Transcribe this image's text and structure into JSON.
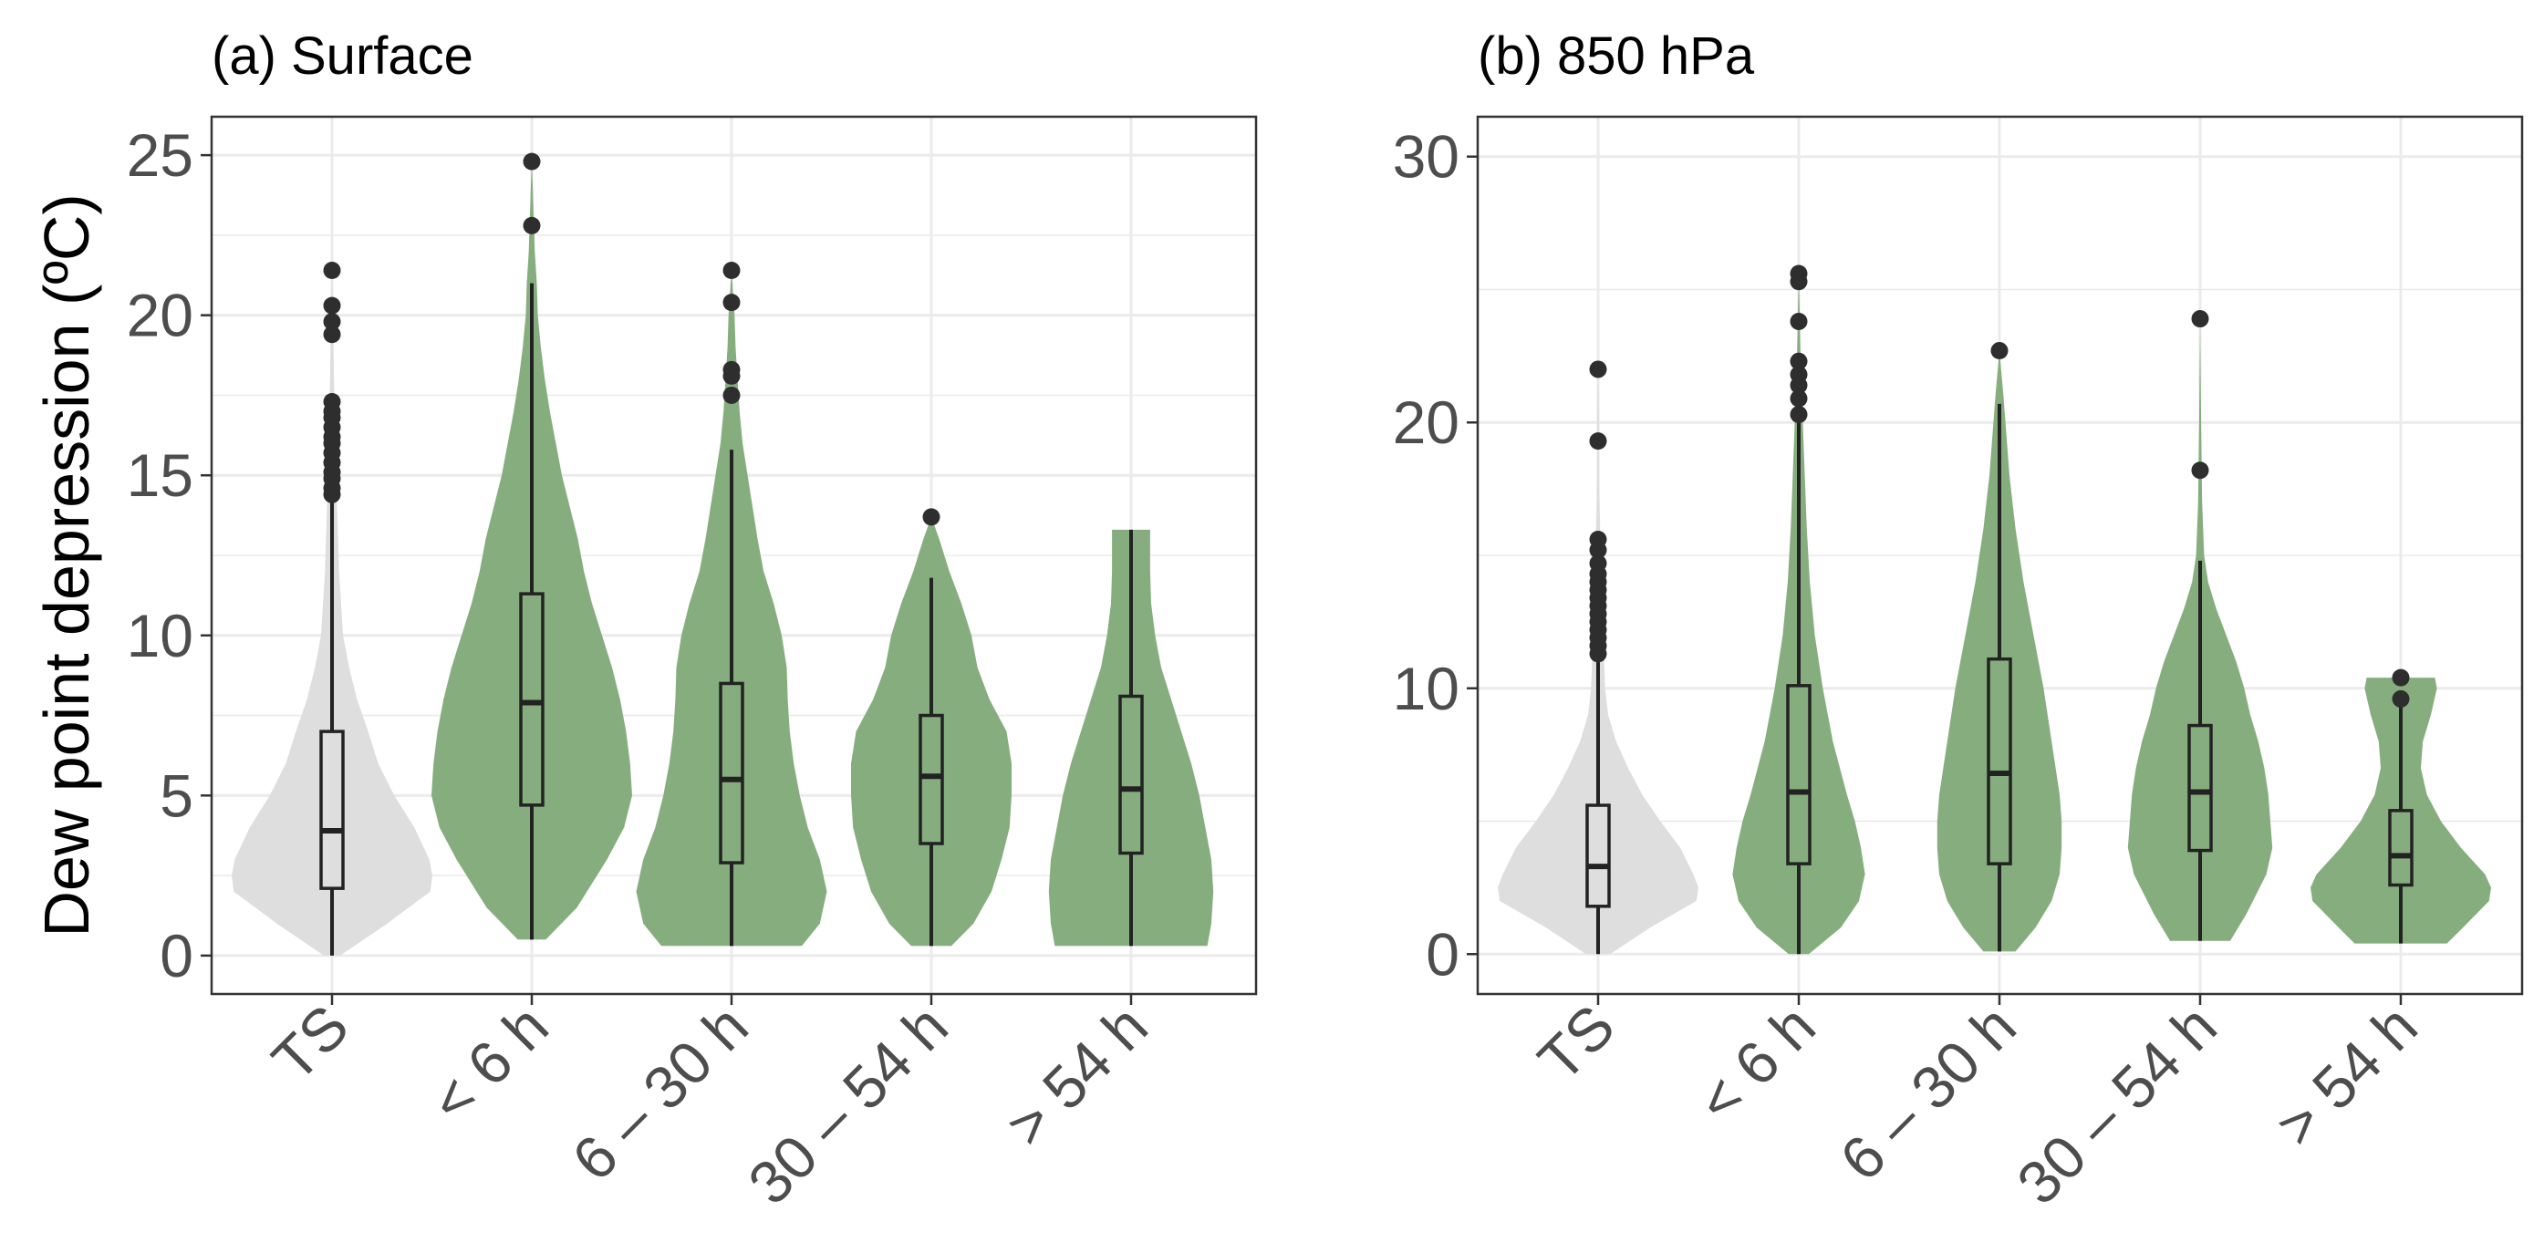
{
  "chart_data": [
    {
      "type": "violin",
      "title": "(a) Surface",
      "ylabel": "Dew point depression (ºC)",
      "xlabel": "",
      "categories": [
        "TS",
        "< 6 h",
        "6 – 30 h",
        "30 – 54 h",
        "> 54 h"
      ],
      "ylim": [
        -1.2,
        26.2
      ],
      "yticks": [
        0,
        5,
        10,
        15,
        20,
        25
      ],
      "grid": true,
      "fill_colors": [
        "#dedede",
        "#86ad7e",
        "#86ad7e",
        "#86ad7e",
        "#86ad7e"
      ],
      "series": [
        {
          "name": "TS",
          "box": {
            "q1": 2.1,
            "median": 3.9,
            "q3": 7.0,
            "whisker_low": 0.0,
            "whisker_high": 14.2
          },
          "outliers": [
            21.4,
            20.3,
            19.8,
            19.4,
            17.3,
            17.0,
            16.8,
            16.5,
            16.2,
            16.0,
            15.7,
            15.4,
            15.1,
            14.9,
            14.6,
            14.4
          ],
          "violin": [
            [
              0.0,
              0.08
            ],
            [
              1.0,
              0.55
            ],
            [
              2.0,
              0.98
            ],
            [
              2.5,
              1.0
            ],
            [
              3.0,
              0.97
            ],
            [
              4.0,
              0.82
            ],
            [
              5.0,
              0.62
            ],
            [
              6.0,
              0.46
            ],
            [
              7.0,
              0.36
            ],
            [
              8.0,
              0.25
            ],
            [
              9.0,
              0.17
            ],
            [
              10.0,
              0.11
            ],
            [
              12.0,
              0.07
            ],
            [
              14.0,
              0.05
            ],
            [
              16.0,
              0.03
            ],
            [
              18.0,
              0.02
            ],
            [
              20.0,
              0.01
            ],
            [
              21.4,
              0.0
            ]
          ]
        },
        {
          "name": "< 6 h",
          "box": {
            "q1": 4.7,
            "median": 7.9,
            "q3": 11.3,
            "whisker_low": 0.5,
            "whisker_high": 21.0
          },
          "outliers": [
            24.8,
            22.8
          ],
          "violin": [
            [
              0.5,
              0.14
            ],
            [
              1.5,
              0.45
            ],
            [
              3.0,
              0.75
            ],
            [
              4.0,
              0.92
            ],
            [
              5.0,
              1.0
            ],
            [
              6.0,
              0.98
            ],
            [
              7.0,
              0.94
            ],
            [
              8.0,
              0.88
            ],
            [
              9.0,
              0.8
            ],
            [
              10.0,
              0.7
            ],
            [
              11.0,
              0.6
            ],
            [
              12.0,
              0.52
            ],
            [
              13.0,
              0.46
            ],
            [
              14.0,
              0.38
            ],
            [
              15.0,
              0.3
            ],
            [
              16.0,
              0.24
            ],
            [
              17.0,
              0.18
            ],
            [
              18.0,
              0.13
            ],
            [
              19.0,
              0.09
            ],
            [
              20.0,
              0.06
            ],
            [
              21.0,
              0.05
            ],
            [
              22.0,
              0.03
            ],
            [
              23.0,
              0.02
            ],
            [
              24.0,
              0.01
            ],
            [
              24.8,
              0.0
            ]
          ]
        },
        {
          "name": "6 – 30 h",
          "box": {
            "q1": 2.9,
            "median": 5.5,
            "q3": 8.5,
            "whisker_low": 0.3,
            "whisker_high": 15.8
          },
          "outliers": [
            21.4,
            20.4,
            18.3,
            18.1,
            17.5
          ],
          "violin": [
            [
              0.3,
              0.7
            ],
            [
              1.0,
              0.88
            ],
            [
              2.0,
              0.95
            ],
            [
              3.0,
              0.88
            ],
            [
              4.0,
              0.76
            ],
            [
              5.0,
              0.68
            ],
            [
              6.0,
              0.62
            ],
            [
              7.0,
              0.58
            ],
            [
              8.0,
              0.56
            ],
            [
              9.0,
              0.55
            ],
            [
              10.0,
              0.5
            ],
            [
              11.0,
              0.42
            ],
            [
              12.0,
              0.32
            ],
            [
              13.0,
              0.26
            ],
            [
              14.0,
              0.21
            ],
            [
              15.0,
              0.16
            ],
            [
              16.0,
              0.11
            ],
            [
              17.0,
              0.08
            ],
            [
              18.0,
              0.06
            ],
            [
              19.0,
              0.04
            ],
            [
              20.0,
              0.03
            ],
            [
              21.4,
              0.0
            ]
          ]
        },
        {
          "name": "30 – 54 h",
          "box": {
            "q1": 3.5,
            "median": 5.6,
            "q3": 7.5,
            "whisker_low": 0.3,
            "whisker_high": 11.8
          },
          "outliers": [
            13.7
          ],
          "violin": [
            [
              0.3,
              0.2
            ],
            [
              1.0,
              0.42
            ],
            [
              2.0,
              0.6
            ],
            [
              3.0,
              0.7
            ],
            [
              4.0,
              0.78
            ],
            [
              5.0,
              0.8
            ],
            [
              6.0,
              0.8
            ],
            [
              7.0,
              0.75
            ],
            [
              8.0,
              0.58
            ],
            [
              9.0,
              0.46
            ],
            [
              10.0,
              0.4
            ],
            [
              11.0,
              0.3
            ],
            [
              12.0,
              0.18
            ],
            [
              13.0,
              0.08
            ],
            [
              13.7,
              0.0
            ]
          ]
        },
        {
          "name": "> 54 h",
          "box": {
            "q1": 3.2,
            "median": 5.2,
            "q3": 8.1,
            "whisker_low": 0.3,
            "whisker_high": 13.3
          },
          "outliers": [],
          "violin": [
            [
              0.3,
              0.76
            ],
            [
              1.0,
              0.8
            ],
            [
              2.0,
              0.82
            ],
            [
              3.0,
              0.8
            ],
            [
              4.0,
              0.74
            ],
            [
              5.0,
              0.68
            ],
            [
              6.0,
              0.6
            ],
            [
              7.0,
              0.5
            ],
            [
              8.0,
              0.4
            ],
            [
              9.0,
              0.3
            ],
            [
              10.0,
              0.24
            ],
            [
              11.0,
              0.2
            ],
            [
              12.0,
              0.19
            ],
            [
              13.0,
              0.19
            ],
            [
              13.3,
              0.19
            ]
          ]
        }
      ]
    },
    {
      "type": "violin",
      "title": "(b) 850 hPa",
      "ylabel": "",
      "xlabel": "",
      "categories": [
        "TS",
        "< 6 h",
        "6 – 30 h",
        "30 – 54 h",
        "> 54 h"
      ],
      "ylim": [
        -1.5,
        31.5
      ],
      "yticks": [
        0,
        10,
        20,
        30
      ],
      "grid": true,
      "fill_colors": [
        "#dedede",
        "#86ad7e",
        "#86ad7e",
        "#86ad7e",
        "#86ad7e"
      ],
      "series": [
        {
          "name": "TS",
          "box": {
            "q1": 1.8,
            "median": 3.3,
            "q3": 5.6,
            "whisker_low": 0.0,
            "whisker_high": 11.2
          },
          "outliers": [
            22.0,
            19.3,
            15.6,
            15.2,
            14.7,
            14.3,
            14.0,
            13.7,
            13.4,
            13.1,
            12.8,
            12.5,
            12.2,
            11.9,
            11.6,
            11.3
          ],
          "violin": [
            [
              0.0,
              0.12
            ],
            [
              1.0,
              0.52
            ],
            [
              2.0,
              0.98
            ],
            [
              2.5,
              1.0
            ],
            [
              3.0,
              0.95
            ],
            [
              4.0,
              0.82
            ],
            [
              5.0,
              0.62
            ],
            [
              6.0,
              0.44
            ],
            [
              7.0,
              0.3
            ],
            [
              8.0,
              0.18
            ],
            [
              9.0,
              0.1
            ],
            [
              10.0,
              0.07
            ],
            [
              12.0,
              0.05
            ],
            [
              14.0,
              0.04
            ],
            [
              16.0,
              0.02
            ],
            [
              18.0,
              0.01
            ],
            [
              20.0,
              0.01
            ],
            [
              22.0,
              0.0
            ]
          ]
        },
        {
          "name": "< 6 h",
          "box": {
            "q1": 3.4,
            "median": 6.1,
            "q3": 10.1,
            "whisker_low": 0.0,
            "whisker_high": 20.0
          },
          "outliers": [
            25.6,
            25.3,
            23.8,
            22.3,
            21.8,
            21.4,
            20.9,
            20.3
          ],
          "violin": [
            [
              0.0,
              0.1
            ],
            [
              1.0,
              0.42
            ],
            [
              2.0,
              0.6
            ],
            [
              3.0,
              0.66
            ],
            [
              4.0,
              0.62
            ],
            [
              5.0,
              0.56
            ],
            [
              6.0,
              0.48
            ],
            [
              8.0,
              0.34
            ],
            [
              10.0,
              0.24
            ],
            [
              12.0,
              0.16
            ],
            [
              14.0,
              0.11
            ],
            [
              16.0,
              0.08
            ],
            [
              18.0,
              0.06
            ],
            [
              20.0,
              0.04
            ],
            [
              22.0,
              0.02
            ],
            [
              24.0,
              0.01
            ],
            [
              25.6,
              0.0
            ]
          ]
        },
        {
          "name": "6 – 30 h",
          "box": {
            "q1": 3.4,
            "median": 6.8,
            "q3": 11.1,
            "whisker_low": 0.1,
            "whisker_high": 20.7
          },
          "outliers": [
            22.7
          ],
          "violin": [
            [
              0.1,
              0.16
            ],
            [
              1.0,
              0.36
            ],
            [
              2.0,
              0.52
            ],
            [
              3.0,
              0.6
            ],
            [
              4.0,
              0.62
            ],
            [
              5.0,
              0.62
            ],
            [
              6.0,
              0.6
            ],
            [
              7.0,
              0.56
            ],
            [
              8.0,
              0.52
            ],
            [
              10.0,
              0.44
            ],
            [
              12.0,
              0.34
            ],
            [
              14.0,
              0.24
            ],
            [
              16.0,
              0.16
            ],
            [
              18.0,
              0.1
            ],
            [
              20.0,
              0.06
            ],
            [
              21.0,
              0.04
            ],
            [
              22.7,
              0.0
            ]
          ]
        },
        {
          "name": "30 – 54 h",
          "box": {
            "q1": 3.9,
            "median": 6.1,
            "q3": 8.6,
            "whisker_low": 0.5,
            "whisker_high": 14.8
          },
          "outliers": [
            23.9,
            18.2
          ],
          "violin": [
            [
              0.5,
              0.3
            ],
            [
              1.5,
              0.46
            ],
            [
              3.0,
              0.66
            ],
            [
              4.0,
              0.72
            ],
            [
              5.0,
              0.7
            ],
            [
              6.0,
              0.68
            ],
            [
              7.0,
              0.64
            ],
            [
              8.0,
              0.58
            ],
            [
              9.0,
              0.5
            ],
            [
              10.0,
              0.44
            ],
            [
              11.0,
              0.36
            ],
            [
              12.0,
              0.26
            ],
            [
              13.0,
              0.16
            ],
            [
              14.0,
              0.08
            ],
            [
              15.0,
              0.04
            ],
            [
              17.0,
              0.02
            ],
            [
              20.0,
              0.01
            ],
            [
              23.9,
              0.0
            ]
          ]
        },
        {
          "name": "> 54 h",
          "box": {
            "q1": 2.6,
            "median": 3.7,
            "q3": 5.4,
            "whisker_low": 0.4,
            "whisker_high": 9.5
          },
          "outliers": [
            10.4,
            9.6
          ],
          "violin": [
            [
              0.4,
              0.46
            ],
            [
              1.0,
              0.62
            ],
            [
              2.0,
              0.88
            ],
            [
              2.5,
              0.9
            ],
            [
              3.0,
              0.84
            ],
            [
              4.0,
              0.6
            ],
            [
              5.0,
              0.4
            ],
            [
              6.0,
              0.26
            ],
            [
              7.0,
              0.2
            ],
            [
              8.0,
              0.22
            ],
            [
              9.0,
              0.3
            ],
            [
              10.0,
              0.36
            ],
            [
              10.4,
              0.34
            ]
          ]
        }
      ]
    }
  ]
}
